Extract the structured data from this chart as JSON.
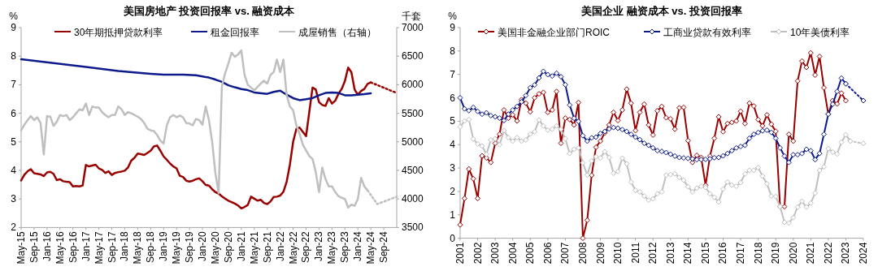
{
  "chart_data": [
    {
      "type": "line",
      "title": "美国房地产 投资回报率 vs. 融资成本",
      "ylabel": "%",
      "y2label": "千套",
      "legend": "top",
      "xlim": [
        "2015-05",
        "2025-01"
      ],
      "xticks": [
        {
          "value": "2015-05",
          "label": "May-15"
        },
        {
          "value": "2015-09",
          "label": "Sep-15"
        },
        {
          "value": "2016-01",
          "label": "Jan-16"
        },
        {
          "value": "2016-05",
          "label": "May-16"
        },
        {
          "value": "2016-09",
          "label": "Sep-16"
        },
        {
          "value": "2017-01",
          "label": "Jan-17"
        },
        {
          "value": "2017-05",
          "label": "May-17"
        },
        {
          "value": "2017-09",
          "label": "Sep-17"
        },
        {
          "value": "2018-01",
          "label": "Jan-18"
        },
        {
          "value": "2018-05",
          "label": "May-18"
        },
        {
          "value": "2018-09",
          "label": "Sep-18"
        },
        {
          "value": "2019-01",
          "label": "Jan-19"
        },
        {
          "value": "2019-05",
          "label": "May-19"
        },
        {
          "value": "2019-09",
          "label": "Sep-19"
        },
        {
          "value": "2020-01",
          "label": "Jan-20"
        },
        {
          "value": "2020-05",
          "label": "May-20"
        },
        {
          "value": "2020-09",
          "label": "Sep-20"
        },
        {
          "value": "2021-01",
          "label": "Jan-21"
        },
        {
          "value": "2021-05",
          "label": "May-21"
        },
        {
          "value": "2021-09",
          "label": "Sep-21"
        },
        {
          "value": "2022-01",
          "label": "Jan-22"
        },
        {
          "value": "2022-05",
          "label": "May-22"
        },
        {
          "value": "2022-09",
          "label": "Sep-22"
        },
        {
          "value": "2023-01",
          "label": "Jan-23"
        },
        {
          "value": "2023-05",
          "label": "May-23"
        },
        {
          "value": "2023-09",
          "label": "Sep-23"
        },
        {
          "value": "2024-01",
          "label": "Jan-24"
        },
        {
          "value": "2024-05",
          "label": "May-24"
        },
        {
          "value": "2024-09",
          "label": "Sep-24"
        }
      ],
      "ylim": [
        2,
        9
      ],
      "yticks": [
        2,
        3,
        4,
        5,
        6,
        7,
        8,
        9
      ],
      "y2lim": [
        3500,
        7000
      ],
      "y2ticks": [
        3500,
        4000,
        4500,
        5000,
        5500,
        6000,
        6500,
        7000
      ],
      "x": [
        "2015-05",
        "2015-06",
        "2015-07",
        "2015-08",
        "2015-09",
        "2015-10",
        "2015-11",
        "2015-12",
        "2016-01",
        "2016-02",
        "2016-03",
        "2016-04",
        "2016-05",
        "2016-06",
        "2016-07",
        "2016-08",
        "2016-09",
        "2016-10",
        "2016-11",
        "2016-12",
        "2017-01",
        "2017-02",
        "2017-03",
        "2017-04",
        "2017-05",
        "2017-06",
        "2017-07",
        "2017-08",
        "2017-09",
        "2017-10",
        "2017-11",
        "2017-12",
        "2018-01",
        "2018-02",
        "2018-03",
        "2018-04",
        "2018-05",
        "2018-06",
        "2018-07",
        "2018-08",
        "2018-09",
        "2018-10",
        "2018-11",
        "2018-12",
        "2019-01",
        "2019-02",
        "2019-03",
        "2019-04",
        "2019-05",
        "2019-06",
        "2019-07",
        "2019-08",
        "2019-09",
        "2019-10",
        "2019-11",
        "2019-12",
        "2020-01",
        "2020-02",
        "2020-03",
        "2020-04",
        "2020-05",
        "2020-06",
        "2020-07",
        "2020-08",
        "2020-09",
        "2020-10",
        "2020-11",
        "2020-12",
        "2021-01",
        "2021-02",
        "2021-03",
        "2021-04",
        "2021-05",
        "2021-06",
        "2021-07",
        "2021-08",
        "2021-09",
        "2021-10",
        "2021-11",
        "2021-12",
        "2022-01",
        "2022-02",
        "2022-03",
        "2022-04",
        "2022-05",
        "2022-06",
        "2022-07",
        "2022-08",
        "2022-09",
        "2022-10",
        "2022-11",
        "2022-12",
        "2023-01",
        "2023-02",
        "2023-03",
        "2023-04",
        "2023-05",
        "2023-06",
        "2023-07",
        "2023-08",
        "2023-09",
        "2023-10",
        "2023-11",
        "2023-12",
        "2024-01",
        "2024-02",
        "2024-03",
        "2024-04",
        "2024-05"
      ],
      "series": [
        {
          "name": "30年期抵押贷款利率",
          "color": "#990000",
          "values": [
            3.65,
            3.85,
            3.97,
            4.04,
            3.9,
            3.88,
            3.86,
            3.8,
            3.93,
            3.95,
            3.88,
            3.66,
            3.69,
            3.62,
            3.6,
            3.59,
            3.44,
            3.45,
            3.44,
            3.47,
            4.19,
            4.14,
            4.17,
            4.2,
            4.07,
            4.02,
            3.91,
            3.97,
            3.84,
            3.91,
            3.94,
            3.96,
            3.99,
            4.1,
            4.34,
            4.44,
            4.59,
            4.57,
            4.54,
            4.61,
            4.69,
            4.84,
            4.87,
            4.69,
            4.49,
            4.37,
            4.24,
            4.14,
            4.07,
            3.81,
            3.77,
            3.64,
            3.61,
            3.64,
            3.69,
            3.72,
            3.62,
            3.49,
            3.47,
            3.34,
            3.24,
            3.19,
            3.09,
            3.01,
            2.94,
            2.89,
            2.84,
            2.77,
            2.67,
            2.72,
            2.79,
            3.08,
            3.01,
            2.94,
            2.97,
            2.86,
            2.82,
            2.91,
            3.07,
            3.08,
            3.12,
            3.25,
            3.6,
            4.2,
            5.0,
            5.45,
            5.5,
            5.35,
            5.2,
            6.05,
            6.9,
            6.83,
            6.39,
            6.29,
            6.26,
            6.53,
            6.34,
            6.44,
            6.68,
            6.85,
            7.13,
            7.6,
            7.44,
            6.83,
            6.65,
            6.78,
            6.85,
            7.03,
            7.08
          ]
        },
        {
          "name": "租金回报率",
          "color": "#0d1a8c",
          "x": [
            "2015-05",
            "2016-03",
            "2017-01",
            "2017-11",
            "2018-09",
            "2019-01",
            "2019-07",
            "2019-11",
            "2020-03",
            "2020-05",
            "2020-07",
            "2020-09",
            "2020-11",
            "2021-01",
            "2021-03",
            "2021-05",
            "2021-09",
            "2021-11",
            "2022-01",
            "2022-03",
            "2022-05",
            "2022-07",
            "2022-09",
            "2022-11",
            "2023-01",
            "2023-03",
            "2023-05",
            "2023-07",
            "2023-09",
            "2023-11",
            "2024-01",
            "2024-03",
            "2024-05"
          ],
          "values": [
            7.89,
            7.76,
            7.62,
            7.48,
            7.38,
            7.35,
            7.35,
            7.33,
            7.25,
            7.18,
            7.1,
            6.98,
            6.91,
            6.85,
            6.81,
            6.73,
            6.68,
            6.75,
            6.79,
            6.65,
            6.53,
            6.46,
            6.49,
            6.53,
            6.63,
            6.71,
            6.73,
            6.71,
            6.63,
            6.63,
            6.65,
            6.67,
            6.7
          ]
        },
        {
          "name": "成屋销售（右轴）",
          "color": "#bfbfbf",
          "axis": "y2",
          "values": [
            5200,
            5300,
            5380,
            5450,
            5380,
            5430,
            5330,
            4780,
            5450,
            5440,
            5280,
            5350,
            5470,
            5450,
            5470,
            5380,
            5430,
            5500,
            5570,
            5550,
            5670,
            5470,
            5620,
            5600,
            5600,
            5520,
            5470,
            5430,
            5470,
            5470,
            5620,
            5570,
            5470,
            5520,
            5500,
            5470,
            5440,
            5400,
            5330,
            5230,
            5200,
            5190,
            5120,
            5020,
            4970,
            5290,
            5430,
            5470,
            5430,
            5460,
            5430,
            5330,
            5320,
            5290,
            5400,
            5380,
            5300,
            5620,
            5380,
            5000,
            4450,
            4100,
            5970,
            6200,
            6370,
            6560,
            6490,
            6530,
            6600,
            6170,
            6000,
            5950,
            5900,
            5960,
            6020,
            6070,
            6020,
            6170,
            6220,
            6440,
            6220,
            6440,
            5820,
            5620,
            5550,
            5290,
            5140,
            4950,
            4850,
            4750,
            4700,
            4470,
            4120,
            4550,
            4350,
            4220,
            4220,
            4120,
            4050,
            4020,
            4000,
            3850,
            3900,
            3880,
            4000,
            4370,
            4220,
            4150,
            null
          ]
        },
        {
          "color": "#990000",
          "line_style": "dotted",
          "x": [
            "2024-05",
            "2025-01"
          ],
          "values": [
            7.08,
            6.71
          ]
        },
        {
          "color": "#bfbfbf",
          "line_style": "dotted",
          "axis": "y2",
          "x": [
            "2024-04",
            "2024-07",
            "2025-01"
          ],
          "values": [
            4150,
            3910,
            4040
          ]
        }
      ]
    },
    {
      "type": "line",
      "title": "美国企业 融资成本 vs. 投资回报率",
      "ylabel": "%",
      "legend": "top",
      "marker": "diamond",
      "xlim": [
        2001,
        2024
      ],
      "xticks": [
        2001,
        2002,
        2003,
        2004,
        2005,
        2006,
        2007,
        2008,
        2009,
        2010,
        2011,
        2012,
        2013,
        2014,
        2015,
        2016,
        2017,
        2018,
        2019,
        2020,
        2021,
        2022,
        2023,
        2024
      ],
      "ylim": [
        0,
        9
      ],
      "yticks": [
        0,
        1,
        2,
        3,
        4,
        5,
        6,
        7,
        8,
        9
      ],
      "x": [
        2001,
        2001.25,
        2001.5,
        2001.75,
        2002,
        2002.25,
        2002.5,
        2002.75,
        2003,
        2003.25,
        2003.5,
        2003.75,
        2004,
        2004.25,
        2004.5,
        2004.75,
        2005,
        2005.25,
        2005.5,
        2005.75,
        2006,
        2006.25,
        2006.5,
        2006.75,
        2007,
        2007.25,
        2007.5,
        2007.75,
        2008,
        2008.25,
        2008.5,
        2008.75,
        2009,
        2009.25,
        2009.5,
        2009.75,
        2010,
        2010.25,
        2010.5,
        2010.75,
        2011,
        2011.25,
        2011.5,
        2011.75,
        2012,
        2012.25,
        2012.5,
        2012.75,
        2013,
        2013.25,
        2013.5,
        2013.75,
        2014,
        2014.25,
        2014.5,
        2014.75,
        2015,
        2015.25,
        2015.5,
        2015.75,
        2016,
        2016.25,
        2016.5,
        2016.75,
        2017,
        2017.25,
        2017.5,
        2017.75,
        2018,
        2018.25,
        2018.5,
        2018.75,
        2019,
        2019.25,
        2019.5,
        2019.75,
        2020,
        2020.25,
        2020.5,
        2020.75,
        2021,
        2021.25,
        2021.5,
        2021.75,
        2022,
        2022.25,
        2022.5,
        2022.75,
        2023,
        2023.25
      ],
      "series": [
        {
          "name": "美国非金融企业部门ROIC",
          "color": "#990000",
          "values": [
            0.57,
            1.7,
            2.96,
            2.54,
            1.7,
            3.52,
            3.43,
            3.24,
            4.06,
            4.45,
            5.48,
            5.13,
            5.27,
            5.01,
            5.92,
            5.77,
            5.4,
            6.0,
            6.17,
            6.23,
            5.38,
            5.48,
            6.27,
            4.06,
            5.13,
            5.07,
            4.84,
            5.8,
            0,
            0.77,
            2.69,
            3.89,
            4.15,
            4.5,
            4.84,
            5.38,
            5.03,
            5.48,
            6.37,
            5.77,
            4.6,
            5.38,
            5.73,
            4.84,
            4.41,
            5.44,
            5.63,
            5.15,
            5.1,
            4.66,
            5.57,
            5.59,
            4.17,
            3.24,
            3.54,
            3.45,
            2.26,
            3.51,
            4.27,
            5.19,
            4.55,
            4.9,
            4.95,
            5.01,
            5.42,
            4.9,
            5.77,
            5.65,
            5.07,
            4.8,
            5.27,
            4.87,
            4.57,
            1.35,
            1.35,
            4.44,
            4.15,
            6.72,
            7.57,
            7.3,
            7.92,
            6.97,
            7.77,
            6.43,
            5.3,
            5.88,
            5.74,
            6.2,
            5.88,
            null
          ]
        },
        {
          "name": "工商业贷款有效利率",
          "color": "#0d1a8c",
          "values": [
            6.0,
            5.53,
            5.45,
            5.59,
            5.42,
            5.3,
            5.36,
            5.24,
            5.19,
            5.13,
            5.03,
            5.3,
            5.48,
            5.63,
            5.83,
            6.1,
            6.43,
            6.55,
            6.85,
            7.13,
            6.99,
            6.93,
            7.05,
            6.9,
            6.56,
            5.69,
            5.13,
            4.99,
            4.38,
            4.15,
            4.29,
            4.32,
            4.48,
            4.56,
            4.67,
            4.73,
            4.7,
            4.64,
            4.56,
            4.44,
            4.32,
            4.21,
            4.06,
            3.97,
            3.86,
            3.74,
            3.71,
            3.66,
            3.59,
            3.51,
            3.45,
            3.43,
            3.41,
            3.39,
            3.36,
            3.36,
            3.37,
            3.39,
            3.44,
            3.45,
            3.52,
            3.62,
            3.74,
            3.86,
            3.92,
            3.97,
            4.27,
            4.44,
            4.52,
            4.59,
            4.62,
            4.52,
            4.27,
            3.86,
            3.51,
            3.24,
            3.57,
            3.57,
            3.62,
            3.8,
            3.74,
            3.36,
            3.62,
            4.44,
            5.3,
            5.73,
            6.27,
            6.84,
            6.6,
            null
          ]
        },
        {
          "name": "10年美债利率",
          "color": "#bfbfbf",
          "values": [
            4.76,
            5.01,
            5.07,
            4.24,
            4.03,
            3.94,
            3.59,
            4.2,
            4.25,
            4.0,
            4.6,
            4.3,
            4.15,
            4.3,
            4.15,
            4.2,
            4.45,
            4.55,
            5.05,
            4.8,
            4.62,
            4.66,
            4.8,
            4.65,
            4.25,
            3.62,
            3.8,
            3.86,
            3.22,
            2.7,
            3.3,
            3.48,
            3.43,
            3.7,
            3.45,
            2.78,
            2.85,
            3.42,
            3.18,
            2.4,
            2.05,
            1.98,
            1.8,
            1.63,
            1.68,
            1.9,
            1.98,
            2.7,
            2.72,
            2.75,
            2.6,
            2.48,
            2.2,
            1.98,
            2.14,
            2.22,
            2.17,
            1.9,
            1.75,
            1.55,
            2.1,
            2.4,
            2.27,
            2.22,
            2.38,
            2.75,
            2.9,
            2.9,
            3.02,
            2.65,
            2.33,
            1.8,
            1.78,
            1.35,
            0.68,
            0.65,
            0.88,
            1.33,
            1.58,
            1.33,
            1.5,
            1.93,
            2.9,
            3.05,
            3.83,
            3.68,
            3.6,
            4.1,
            4.42,
            4.15
          ]
        },
        {
          "color": "#0d1a8c",
          "line_style": "dotted",
          "x": [
            2023,
            2024
          ],
          "values": [
            6.6,
            5.88
          ]
        },
        {
          "color": "#bfbfbf",
          "line_style": "dotted",
          "x": [
            2023.25,
            2024
          ],
          "values": [
            4.15,
            4.05
          ]
        }
      ]
    }
  ]
}
